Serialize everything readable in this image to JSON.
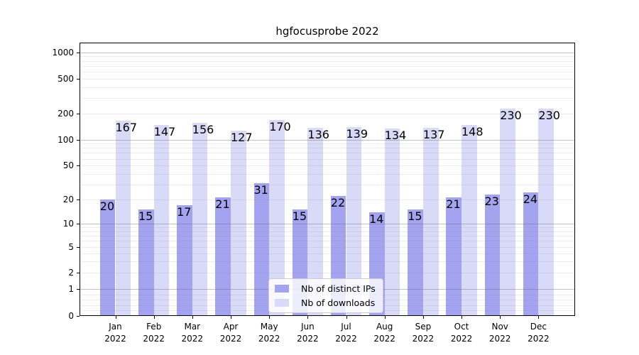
{
  "title": "hgfocusprobe 2022",
  "legend": {
    "items": [
      {
        "label": "Nb of distinct IPs",
        "color": "#a3a3f0"
      },
      {
        "label": "Nb of downloads",
        "color": "#d9d9f8"
      }
    ]
  },
  "y_axis": {
    "tick_labels": [
      "1000",
      "500",
      "200",
      "100",
      "50",
      "20",
      "10",
      "5",
      "2",
      "1",
      "0"
    ]
  },
  "x_axis": {
    "tick_labels": [
      [
        "Jan",
        "2022"
      ],
      [
        "Feb",
        "2022"
      ],
      [
        "Mar",
        "2022"
      ],
      [
        "Apr",
        "2022"
      ],
      [
        "May",
        "2022"
      ],
      [
        "Jun",
        "2022"
      ],
      [
        "Jul",
        "2022"
      ],
      [
        "Aug",
        "2022"
      ],
      [
        "Sep",
        "2022"
      ],
      [
        "Oct",
        "2022"
      ],
      [
        "Nov",
        "2022"
      ],
      [
        "Dec",
        "2022"
      ]
    ]
  },
  "chart_data": {
    "type": "bar",
    "title": "hgfocusprobe 2022",
    "categories": [
      "Jan 2022",
      "Feb 2022",
      "Mar 2022",
      "Apr 2022",
      "May 2022",
      "Jun 2022",
      "Jul 2022",
      "Aug 2022",
      "Sep 2022",
      "Oct 2022",
      "Nov 2022",
      "Dec 2022"
    ],
    "series": [
      {
        "name": "Nb of distinct IPs",
        "color": "#a3a3f0",
        "values": [
          20,
          15,
          17,
          21,
          31,
          15,
          22,
          14,
          15,
          21,
          23,
          24
        ]
      },
      {
        "name": "Nb of downloads",
        "color": "#d9d9f8",
        "values": [
          167,
          147,
          156,
          127,
          170,
          136,
          139,
          134,
          137,
          148,
          230,
          230
        ]
      }
    ],
    "xlabel": "",
    "ylabel": "",
    "yscale": "symlog",
    "y_ticks": [
      1000,
      500,
      200,
      100,
      50,
      20,
      10,
      5,
      2,
      1,
      0
    ],
    "ylim": [
      0,
      1300
    ],
    "grid": true,
    "grid_over_bars": true,
    "legend_position": "lower center"
  }
}
